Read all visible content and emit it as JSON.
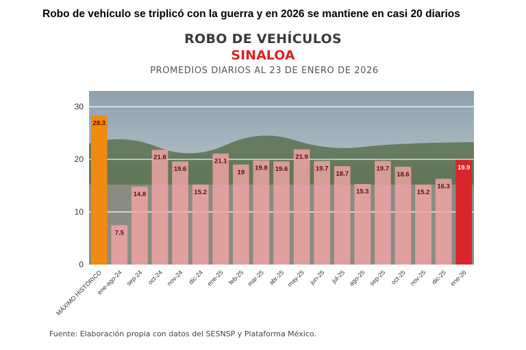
{
  "headline": "Robo de vehículo se triplicó con la guerra y en 2026 se mantiene en casi 20 diarios",
  "source": "Fuente: Elaboración propia con datos del SESNSP y Plataforma México.",
  "colors": {
    "historic": "#f08a10",
    "regular": "#f2a5a5",
    "current": "#d9262a"
  },
  "chart_data": {
    "type": "bar",
    "title": "ROBO DE VEHÍCULOS",
    "subtitle": "SINALOA",
    "caption": "PROMEDIOS DIARIOS AL 23 DE ENERO DE 2026",
    "categories": [
      "MÁXIMO HISTÓRICO",
      "ene-ago-24",
      "sep-24",
      "oct-24",
      "nov-24",
      "dic-24",
      "ene-25",
      "feb-25",
      "mar-25",
      "abr-25",
      "may-25",
      "jun-25",
      "jul-25",
      "ago-25",
      "sep-25",
      "oct-25",
      "nov-25",
      "dic-25",
      "ene-26"
    ],
    "values": [
      28.3,
      7.5,
      14.8,
      21.8,
      19.6,
      15.2,
      21.1,
      19,
      19.8,
      19.6,
      21.9,
      19.7,
      18.7,
      15.3,
      19.7,
      18.6,
      15.2,
      16.3,
      19.9
    ],
    "data_labels": [
      "28.3",
      "7.5",
      "14.8",
      "21.8",
      "19.6",
      "15.2",
      "21.1",
      "19",
      "19.8",
      "19.6",
      "21.9",
      "19.7",
      "18.7",
      "15.3",
      "19.7",
      "18.6",
      "15.2",
      "16.3",
      "19.9"
    ],
    "yticks": [
      0,
      10,
      20,
      30
    ],
    "ylim": [
      0,
      33
    ],
    "xlabel": "",
    "ylabel": "",
    "grid": true,
    "background": "photo"
  }
}
